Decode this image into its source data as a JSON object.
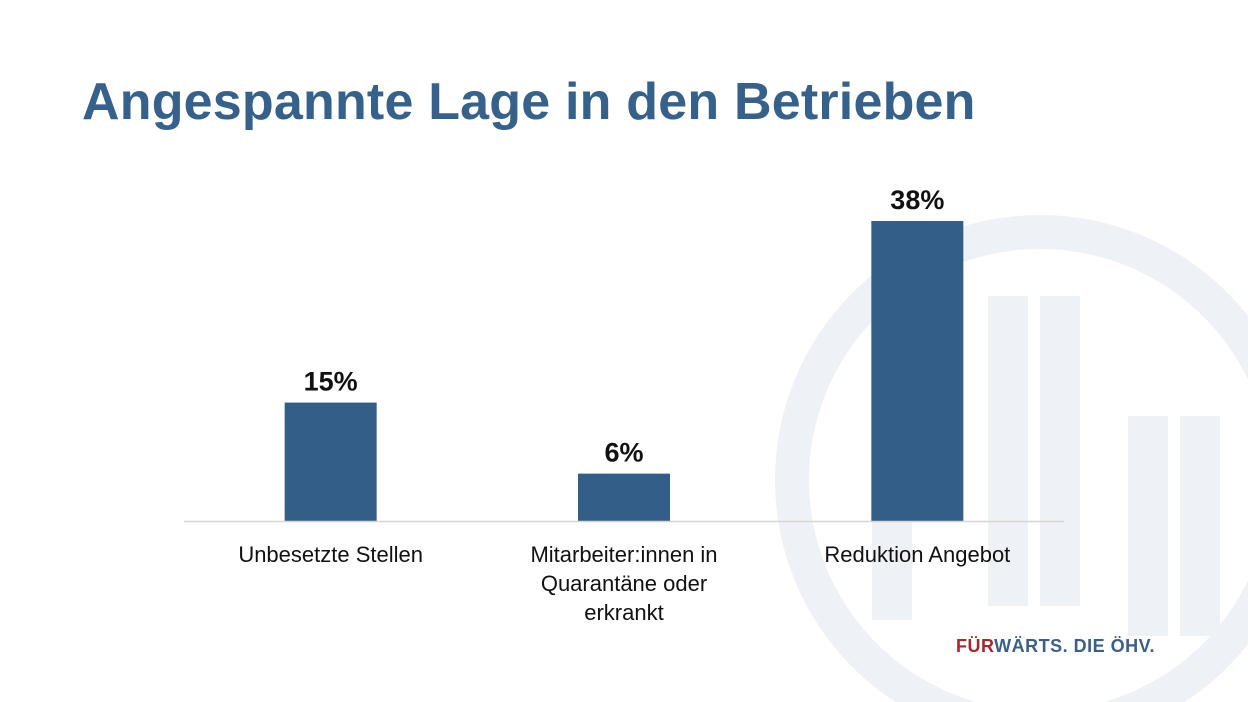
{
  "slide": {
    "title": "Angespannte Lage in den Betrieben"
  },
  "brand": {
    "part1": "FÜR",
    "part2": "WÄRTS. DIE ÖHV."
  },
  "colors": {
    "title": "#35618a",
    "bar": "#335e87",
    "brand_red": "#a02a2e",
    "brand_blue": "#3b5f86",
    "watermark": "#eef1f6"
  },
  "chart_data": {
    "type": "bar",
    "categories": [
      "Unbesetzte Stellen",
      "Mitarbeiter:innen in\nQuarantäne oder\nerkrankt",
      "Reduktion Angebot"
    ],
    "values": [
      15,
      6,
      38
    ],
    "value_labels": [
      "15%",
      "6%",
      "38%"
    ],
    "title": "Angespannte Lage in den Betrieben",
    "xlabel": "",
    "ylabel": "",
    "ylim": [
      0,
      38
    ],
    "grid": false,
    "legend": "none"
  }
}
